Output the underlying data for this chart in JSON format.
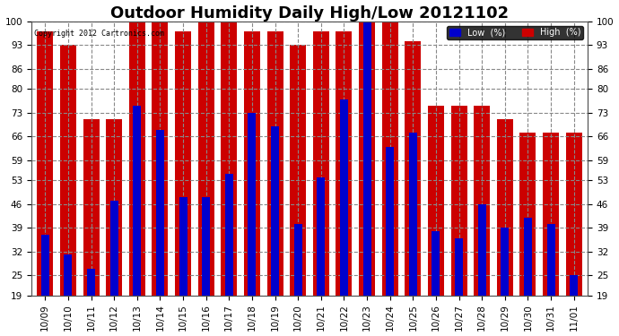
{
  "title": "Outdoor Humidity Daily High/Low 20121102",
  "copyright": "Copyright 2012 Cartronics.com",
  "labels": [
    "10/09",
    "10/10",
    "10/11",
    "10/12",
    "10/13",
    "10/14",
    "10/15",
    "10/16",
    "10/17",
    "10/18",
    "10/19",
    "10/20",
    "10/21",
    "10/22",
    "10/23",
    "10/24",
    "10/25",
    "10/26",
    "10/27",
    "10/28",
    "10/29",
    "10/30",
    "10/31",
    "11/01"
  ],
  "high": [
    97,
    93,
    71,
    71,
    100,
    100,
    97,
    100,
    100,
    97,
    97,
    93,
    97,
    97,
    100,
    100,
    94,
    75,
    75,
    75,
    71,
    67,
    67,
    67
  ],
  "low": [
    37,
    31,
    27,
    47,
    75,
    68,
    48,
    48,
    55,
    73,
    69,
    40,
    54,
    77,
    100,
    63,
    67,
    38,
    36,
    46,
    39,
    42,
    40,
    25
  ],
  "high_color": "#cc0000",
  "low_color": "#0000cc",
  "bg_color": "#ffffff",
  "plot_bg_color": "#ffffff",
  "grid_color": "#888888",
  "yticks": [
    19,
    25,
    32,
    39,
    46,
    53,
    59,
    66,
    73,
    80,
    86,
    93,
    100
  ],
  "ymin": 19,
  "ymax": 100,
  "high_bar_width": 0.7,
  "low_bar_width": 0.35,
  "title_fontsize": 13,
  "tick_fontsize": 7.5,
  "legend_low_label": "Low  (%)",
  "legend_high_label": "High  (%)"
}
